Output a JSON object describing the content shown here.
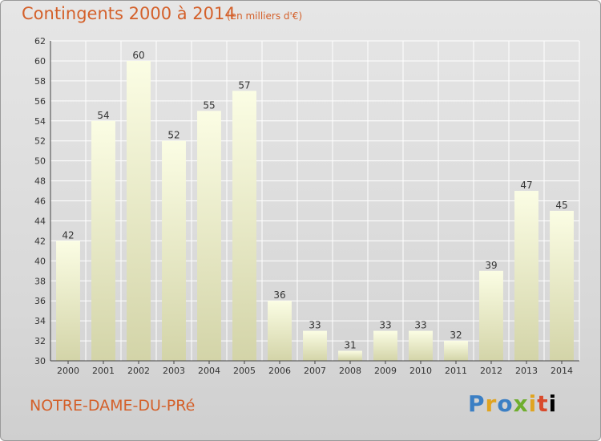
{
  "header": {
    "title": "Contingents 2000 à 2014",
    "subtitle": "(en milliers d'€)"
  },
  "footer": {
    "place": "NOTRE-DAME-DU-PRé",
    "logo_letters": [
      "P",
      "r",
      "o",
      "x",
      "i",
      "t",
      "i"
    ]
  },
  "colors": {
    "title": "#d4602a",
    "bar_top": "#fbfde4",
    "bar_bottom": "#d5d6ac",
    "grid": "#ffffff",
    "background": "#dcdcdc"
  },
  "chart_data": {
    "type": "bar",
    "title": "Contingents 2000 à 2014",
    "subtitle": "(en milliers d'€)",
    "categories": [
      "2000",
      "2001",
      "2002",
      "2003",
      "2004",
      "2005",
      "2006",
      "2007",
      "2008",
      "2009",
      "2010",
      "2011",
      "2012",
      "2013",
      "2014"
    ],
    "values": [
      42,
      54,
      60,
      52,
      55,
      57,
      36,
      33,
      31,
      33,
      33,
      32,
      39,
      47,
      45
    ],
    "xlabel": "",
    "ylabel": "",
    "ylim": [
      30,
      62
    ],
    "yticks": [
      30,
      32,
      34,
      36,
      38,
      40,
      42,
      44,
      46,
      48,
      50,
      52,
      54,
      56,
      58,
      60,
      62
    ],
    "grid": true,
    "data_labels": true
  }
}
